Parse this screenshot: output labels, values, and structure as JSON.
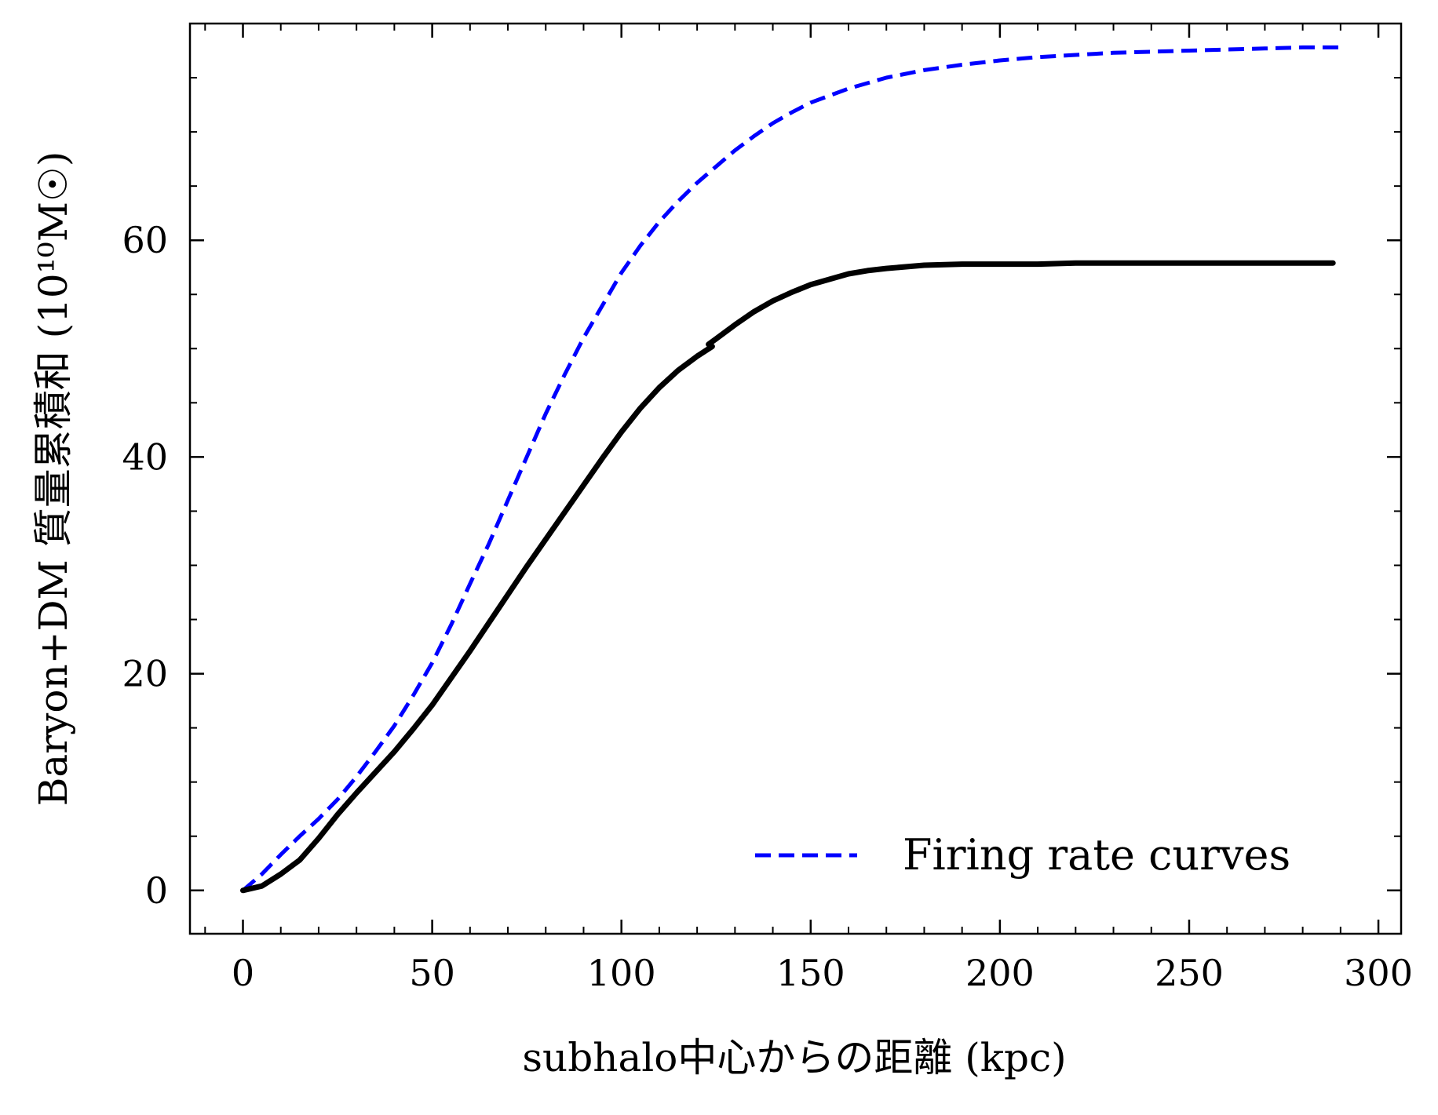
{
  "chart_data": {
    "type": "line",
    "title": "",
    "xlabel": "subhalo中心からの距離 (kpc)",
    "ylabel": "Baryon+DM 質量累積和 (10¹⁰M☉)",
    "xlim": [
      -14,
      306
    ],
    "ylim": [
      -4,
      80
    ],
    "x_ticks": [
      0,
      50,
      100,
      150,
      200,
      250,
      300
    ],
    "x_tick_labels": [
      "0",
      "50",
      "100",
      "150",
      "200",
      "250",
      "300"
    ],
    "y_ticks": [
      0,
      20,
      40,
      60
    ],
    "y_tick_labels": [
      "0",
      "20",
      "40",
      "60"
    ],
    "x_minor_step": 10,
    "y_minor_step": 5,
    "grid": false,
    "legend_position": "lower-right",
    "series": [
      {
        "name": "Firing rate curves",
        "style": "dashed",
        "color": "#0000ff",
        "in_legend": true,
        "x": [
          0,
          5,
          10,
          15,
          20,
          25,
          30,
          35,
          40,
          45,
          50,
          55,
          60,
          65,
          70,
          75,
          80,
          85,
          90,
          95,
          100,
          105,
          110,
          115,
          120,
          125,
          130,
          135,
          140,
          145,
          150,
          160,
          170,
          180,
          190,
          200,
          210,
          220,
          230,
          240,
          250,
          260,
          270,
          280,
          290
        ],
        "y": [
          0,
          1.5,
          3.3,
          5.0,
          6.6,
          8.4,
          10.5,
          12.8,
          15.2,
          18.0,
          21.0,
          24.5,
          28.3,
          32.0,
          36.0,
          40.0,
          44.0,
          47.6,
          51.0,
          54.0,
          57.0,
          59.5,
          61.7,
          63.6,
          65.3,
          66.8,
          68.3,
          69.6,
          70.8,
          71.8,
          72.7,
          74.0,
          75.0,
          75.7,
          76.2,
          76.6,
          76.9,
          77.1,
          77.3,
          77.4,
          77.5,
          77.6,
          77.7,
          77.8,
          77.8
        ]
      },
      {
        "name": "",
        "style": "thick",
        "color": "#000000",
        "in_legend": false,
        "x": [
          0,
          5,
          10,
          15,
          20,
          25,
          30,
          35,
          40,
          45,
          50,
          55,
          60,
          65,
          70,
          75,
          80,
          85,
          90,
          95,
          100,
          105,
          110,
          115,
          120,
          124
        ],
        "y": [
          0,
          0.4,
          1.5,
          2.8,
          4.8,
          7.0,
          9.0,
          10.9,
          12.8,
          14.9,
          17.1,
          19.6,
          22.1,
          24.7,
          27.3,
          29.9,
          32.4,
          34.9,
          37.4,
          39.9,
          42.3,
          44.5,
          46.4,
          48.0,
          49.3,
          50.2
        ]
      },
      {
        "name": "",
        "style": "thick",
        "color": "#000000",
        "in_legend": false,
        "x": [
          123,
          125,
          130,
          135,
          140,
          145,
          150,
          155,
          160,
          165,
          170,
          180,
          190,
          200,
          210,
          220,
          230,
          240,
          250,
          260,
          270,
          280,
          288
        ],
        "y": [
          50.4,
          50.9,
          52.2,
          53.4,
          54.4,
          55.2,
          55.9,
          56.4,
          56.9,
          57.2,
          57.4,
          57.7,
          57.8,
          57.8,
          57.8,
          57.9,
          57.9,
          57.9,
          57.9,
          57.9,
          57.9,
          57.9,
          57.9
        ]
      }
    ]
  }
}
